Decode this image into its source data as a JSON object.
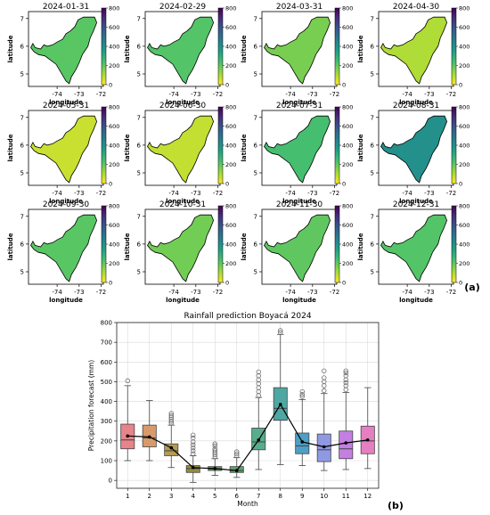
{
  "panel_a": {
    "label": "(a)",
    "xlabel": "longitude",
    "ylabel": "latitude",
    "xticks": [
      -74,
      -73,
      -72
    ],
    "yticks": [
      5,
      6,
      7
    ],
    "colorbar_ticks": [
      0,
      200,
      400,
      600,
      800
    ],
    "colormap": [
      "#fde725",
      "#a0da39",
      "#4ac16d",
      "#1fa187",
      "#277f8e",
      "#365c8d",
      "#46327e",
      "#440154"
    ],
    "maps": [
      {
        "title": "2024-01-31",
        "level": 0.26
      },
      {
        "title": "2024-02-29",
        "level": 0.27
      },
      {
        "title": "2024-03-31",
        "level": 0.21
      },
      {
        "title": "2024-04-30",
        "level": 0.12
      },
      {
        "title": "2024-05-31",
        "level": 0.08
      },
      {
        "title": "2024-06-30",
        "level": 0.09
      },
      {
        "title": "2024-07-31",
        "level": 0.3
      },
      {
        "title": "2024-08-31",
        "level": 0.5
      },
      {
        "title": "2024-09-30",
        "level": 0.26
      },
      {
        "title": "2024-10-31",
        "level": 0.22
      },
      {
        "title": "2024-11-30",
        "level": 0.25
      },
      {
        "title": "2024-12-31",
        "level": 0.27
      }
    ]
  },
  "chart_data": {
    "type": "box",
    "label": "(b)",
    "title": "Rainfall prediction Boyacá 2024",
    "xlabel": "Month",
    "ylabel": "Precipitation forecast (mm)",
    "categories": [
      "1",
      "2",
      "3",
      "4",
      "5",
      "6",
      "7",
      "8",
      "9",
      "10",
      "11",
      "12"
    ],
    "ylim": [
      -40,
      800
    ],
    "yticks": [
      0,
      100,
      200,
      300,
      400,
      500,
      600,
      700,
      800
    ],
    "grid": true,
    "box_colors": [
      "#e6848a",
      "#d89a6a",
      "#b49b50",
      "#948f3d",
      "#62a352",
      "#55a36d",
      "#58ad8c",
      "#4fa7a2",
      "#4e9fc4",
      "#8f99e3",
      "#c47fe2",
      "#e57fc2"
    ],
    "boxes": [
      {
        "whislo": 100,
        "q1": 160,
        "med": 205,
        "q3": 285,
        "whishi": 480,
        "fliers": [
          505
        ]
      },
      {
        "whislo": 100,
        "q1": 170,
        "med": 215,
        "q3": 280,
        "whishi": 405,
        "fliers": []
      },
      {
        "whislo": 65,
        "q1": 125,
        "med": 150,
        "q3": 185,
        "whishi": 280,
        "fliers": [
          290,
          300,
          310,
          320,
          330,
          340
        ]
      },
      {
        "whislo": -10,
        "q1": 40,
        "med": 60,
        "q3": 75,
        "whishi": 125,
        "fliers": [
          135,
          150,
          165,
          180,
          195,
          215,
          230
        ]
      },
      {
        "whislo": 25,
        "q1": 50,
        "med": 58,
        "q3": 70,
        "whishi": 110,
        "fliers": [
          120,
          130,
          140,
          150,
          160,
          175,
          185
        ]
      },
      {
        "whislo": 15,
        "q1": 40,
        "med": 50,
        "q3": 70,
        "whishi": 115,
        "fliers": [
          125,
          135,
          145
        ]
      },
      {
        "whislo": 55,
        "q1": 155,
        "med": 195,
        "q3": 265,
        "whishi": 420,
        "fliers": [
          430,
          450,
          470,
          490,
          510,
          530,
          550
        ]
      },
      {
        "whislo": 80,
        "q1": 305,
        "med": 365,
        "q3": 470,
        "whishi": 740,
        "fliers": [
          750,
          760
        ]
      },
      {
        "whislo": 75,
        "q1": 135,
        "med": 175,
        "q3": 240,
        "whishi": 410,
        "fliers": [
          425,
          435,
          450
        ]
      },
      {
        "whislo": 50,
        "q1": 95,
        "med": 155,
        "q3": 235,
        "whishi": 440,
        "fliers": [
          455,
          480,
          500,
          520,
          555
        ]
      },
      {
        "whislo": 55,
        "q1": 110,
        "med": 160,
        "q3": 250,
        "whishi": 445,
        "fliers": [
          460,
          480,
          495,
          510,
          530,
          545,
          555
        ]
      },
      {
        "whislo": 60,
        "q1": 135,
        "med": 200,
        "q3": 275,
        "whishi": 470,
        "fliers": []
      }
    ],
    "mean_line": {
      "color": "#000000",
      "values": [
        225,
        220,
        165,
        65,
        60,
        50,
        205,
        385,
        195,
        170,
        190,
        205
      ]
    }
  }
}
